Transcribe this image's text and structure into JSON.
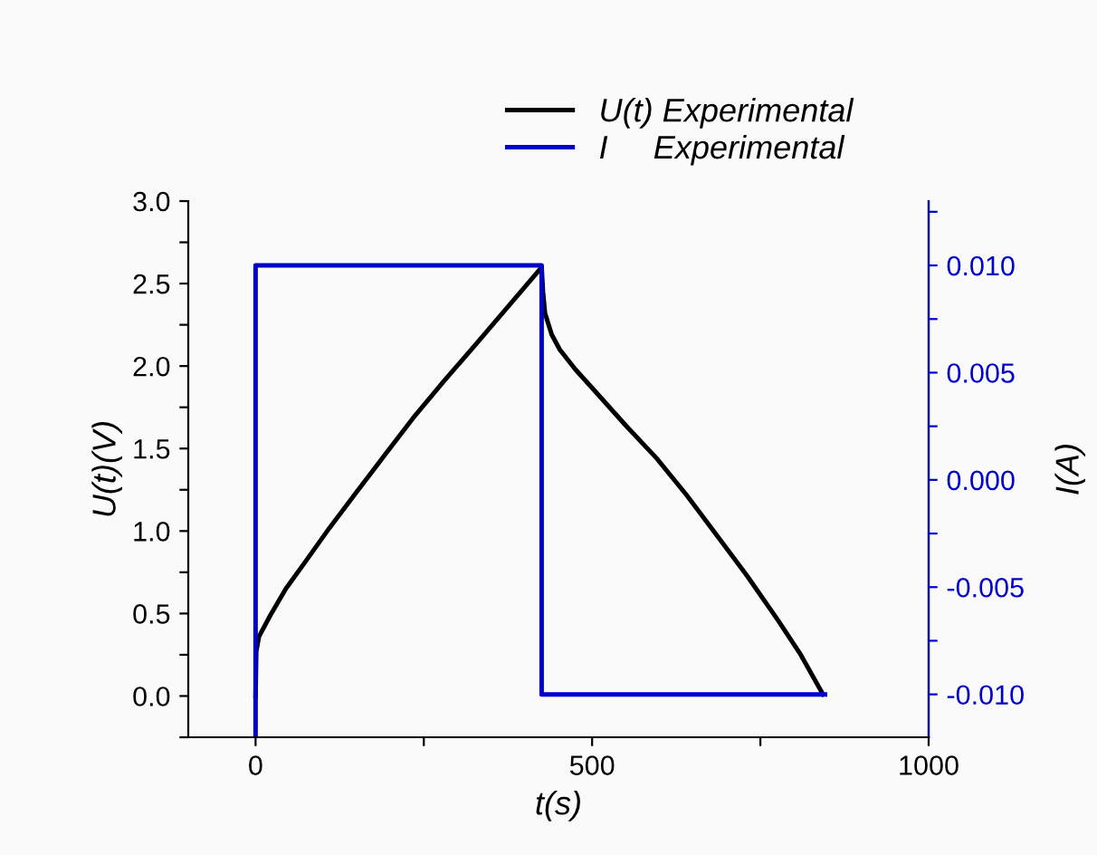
{
  "chart_data": {
    "type": "line",
    "xlabel": "t(s)",
    "ylabel": "U(t)(V)",
    "y2label": "I(A)",
    "xlim": [
      -100,
      1000
    ],
    "xticks": [
      0,
      {
        "value": 250,
        "label": null
      },
      500,
      {
        "value": 750,
        "label": null
      },
      1000
    ],
    "ylim": [
      -0.25,
      3.0
    ],
    "yticks": [
      {
        "value": -0.25,
        "label": null
      },
      {
        "value": 0,
        "label": "0.0"
      },
      {
        "value": 0.25,
        "label": null
      },
      0.5,
      {
        "value": 0.75,
        "label": null
      },
      {
        "value": 1,
        "label": "1.0"
      },
      {
        "value": 1.25,
        "label": null
      },
      1.5,
      {
        "value": 1.75,
        "label": null
      },
      {
        "value": 2,
        "label": "2.0"
      },
      {
        "value": 2.25,
        "label": null
      },
      2.5,
      {
        "value": 2.75,
        "label": null
      },
      {
        "value": 3,
        "label": "3.0"
      }
    ],
    "y2lim": [
      -0.012,
      0.013
    ],
    "y2ticks": [
      {
        "value": -0.01,
        "label": "-0.010"
      },
      {
        "value": -0.0075,
        "label": null
      },
      -0.005,
      {
        "value": -0.0025,
        "label": null
      },
      {
        "value": 0,
        "label": "0.000"
      },
      {
        "value": 0.0025,
        "label": null
      },
      0.005,
      {
        "value": 0.0075,
        "label": null
      },
      {
        "value": 0.01,
        "label": "0.010"
      },
      {
        "value": 0.0125,
        "label": null
      }
    ],
    "legend": "top",
    "grid": false,
    "marker": "none",
    "line_style": "solid",
    "series": [
      {
        "name": "U(t) Experimental",
        "color": "#000000",
        "x": [
          0,
          1,
          5,
          22,
          45,
          75,
          110,
          147,
          190,
          237,
          280,
          327,
          375,
          421,
          425,
          427,
          430,
          440,
          452,
          475,
          506,
          550,
          596,
          640,
          686,
          730,
          776,
          810,
          843
        ],
        "values": [
          0.0,
          0.27,
          0.36,
          0.49,
          0.65,
          0.82,
          1.02,
          1.22,
          1.45,
          1.7,
          1.91,
          2.13,
          2.36,
          2.58,
          2.6,
          2.45,
          2.32,
          2.19,
          2.1,
          1.98,
          1.84,
          1.64,
          1.44,
          1.22,
          0.97,
          0.73,
          0.46,
          0.25,
          0.01
        ]
      },
      {
        "name": "I     Experimental",
        "color": "#0000cc",
        "axis": "y2",
        "x": [
          0,
          0,
          425,
          425,
          846
        ],
        "values": [
          -0.012,
          0.01,
          0.01,
          -0.01,
          -0.01
        ]
      }
    ]
  }
}
